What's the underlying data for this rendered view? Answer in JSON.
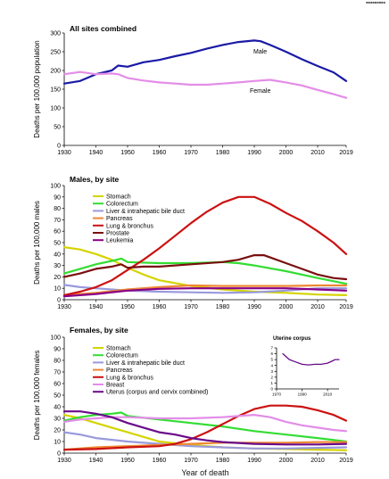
{
  "corner_text": "■■■■■■■■■",
  "xaxis_label": "Year of death",
  "chart_data": [
    {
      "type": "line",
      "title": "All sites combined",
      "ylabel": "Deaths per 100,000 population",
      "xlabel": "",
      "xlim": [
        1930,
        2019
      ],
      "ylim": [
        0,
        300
      ],
      "x_ticks": [
        1930,
        1940,
        1950,
        1960,
        1970,
        1980,
        1990,
        2000,
        2010,
        2019
      ],
      "y_ticks": [
        0,
        50,
        100,
        150,
        200,
        250,
        300
      ],
      "legend": "inline",
      "series": [
        {
          "name": "Male",
          "color": "#1a1aa6",
          "x": [
            1930,
            1935,
            1940,
            1945,
            1947,
            1950,
            1955,
            1960,
            1965,
            1970,
            1975,
            1980,
            1985,
            1990,
            1992,
            1995,
            2000,
            2005,
            2010,
            2015,
            2019
          ],
          "y": [
            165,
            172,
            190,
            200,
            213,
            210,
            222,
            228,
            238,
            247,
            258,
            268,
            276,
            280,
            278,
            268,
            250,
            230,
            212,
            195,
            172
          ]
        },
        {
          "name": "Female",
          "color": "#e38de8",
          "x": [
            1930,
            1935,
            1940,
            1945,
            1947,
            1950,
            1955,
            1960,
            1965,
            1970,
            1975,
            1980,
            1985,
            1990,
            1995,
            2000,
            2005,
            2010,
            2015,
            2019
          ],
          "y": [
            190,
            196,
            190,
            192,
            190,
            180,
            173,
            168,
            165,
            162,
            162,
            165,
            168,
            172,
            175,
            168,
            160,
            148,
            137,
            127
          ]
        }
      ]
    },
    {
      "type": "line",
      "title": "Males, by site",
      "ylabel": "Deaths per 100,000 males",
      "xlabel": "",
      "xlim": [
        1930,
        2019
      ],
      "ylim": [
        0,
        100
      ],
      "x_ticks": [
        1930,
        1940,
        1950,
        1960,
        1970,
        1980,
        1990,
        2000,
        2010,
        2019
      ],
      "y_ticks": [
        0,
        10,
        20,
        30,
        40,
        50,
        60,
        70,
        80,
        90,
        100
      ],
      "legend": "top-left",
      "series": [
        {
          "name": "Stomach",
          "color": "#d4d400",
          "x": [
            1930,
            1935,
            1940,
            1945,
            1950,
            1955,
            1960,
            1970,
            1980,
            1990,
            2000,
            2010,
            2019
          ],
          "y": [
            46,
            44,
            40,
            35,
            28,
            22,
            17,
            12,
            9,
            7,
            6,
            4.5,
            4
          ]
        },
        {
          "name": "Colorectum",
          "color": "#33dd33",
          "x": [
            1930,
            1935,
            1940,
            1945,
            1948,
            1950,
            1960,
            1970,
            1980,
            1985,
            1990,
            2000,
            2010,
            2019
          ],
          "y": [
            23,
            27,
            31,
            34,
            36,
            33,
            32,
            32,
            33,
            32,
            30,
            25,
            19,
            14
          ]
        },
        {
          "name": "Liver & intrahepatic bile duct",
          "color": "#9999dd",
          "x": [
            1930,
            1935,
            1940,
            1950,
            1960,
            1970,
            1980,
            1990,
            2000,
            2010,
            2019
          ],
          "y": [
            13,
            11,
            10,
            8,
            7,
            6.5,
            6,
            6.5,
            8,
            10,
            10
          ]
        },
        {
          "name": "Pancreas",
          "color": "#ee8833",
          "x": [
            1930,
            1940,
            1950,
            1960,
            1970,
            1980,
            1990,
            2000,
            2010,
            2019
          ],
          "y": [
            4,
            6,
            9,
            11,
            12.5,
            12,
            12,
            12,
            12.5,
            12.5
          ]
        },
        {
          "name": "Lung & bronchus",
          "color": "#cc1111",
          "x": [
            1930,
            1935,
            1940,
            1945,
            1950,
            1955,
            1960,
            1965,
            1970,
            1975,
            1980,
            1985,
            1990,
            1995,
            2000,
            2005,
            2010,
            2015,
            2019
          ],
          "y": [
            4,
            7,
            11,
            17,
            26,
            35,
            45,
            56,
            67,
            77,
            85,
            90,
            90,
            84,
            76,
            69,
            60,
            50,
            40
          ]
        },
        {
          "name": "Prostate",
          "color": "#7a0f0f",
          "x": [
            1930,
            1935,
            1940,
            1945,
            1948,
            1950,
            1955,
            1960,
            1970,
            1980,
            1985,
            1990,
            1993,
            1995,
            2000,
            2005,
            2010,
            2015,
            2019
          ],
          "y": [
            20,
            23,
            27,
            29,
            31,
            28,
            29,
            29,
            31,
            33,
            35,
            39,
            39,
            37,
            32,
            27,
            22,
            19,
            18
          ]
        },
        {
          "name": "Leukemia",
          "color": "#880088",
          "x": [
            1930,
            1940,
            1950,
            1960,
            1970,
            1980,
            1990,
            2000,
            2010,
            2019
          ],
          "y": [
            3,
            5,
            8,
            9.5,
            10,
            10,
            10,
            10,
            9,
            8
          ]
        }
      ]
    },
    {
      "type": "line",
      "title": "Females, by site",
      "ylabel": "Deaths per 100,000 females",
      "xlabel": "",
      "xlim": [
        1930,
        2019
      ],
      "ylim": [
        0,
        100
      ],
      "x_ticks": [
        1930,
        1940,
        1950,
        1960,
        1970,
        1980,
        1990,
        2000,
        2010,
        2019
      ],
      "y_ticks": [
        0,
        10,
        20,
        30,
        40,
        50,
        60,
        70,
        80,
        90,
        100
      ],
      "legend": "top-left",
      "series": [
        {
          "name": "Stomach",
          "color": "#d4d400",
          "x": [
            1930,
            1935,
            1940,
            1945,
            1950,
            1955,
            1960,
            1970,
            1980,
            1990,
            2000,
            2010,
            2019
          ],
          "y": [
            33,
            30,
            26,
            22,
            18,
            14,
            10,
            7,
            5,
            4,
            3.5,
            3,
            2.5
          ]
        },
        {
          "name": "Colorectum",
          "color": "#33dd33",
          "x": [
            1930,
            1935,
            1940,
            1945,
            1948,
            1950,
            1960,
            1970,
            1980,
            1990,
            2000,
            2010,
            2019
          ],
          "y": [
            28,
            31,
            33,
            34,
            35,
            32,
            29,
            26,
            23,
            19,
            16,
            13,
            10
          ]
        },
        {
          "name": "Liver & intrahepatic bile duct",
          "color": "#9999dd",
          "x": [
            1930,
            1935,
            1940,
            1950,
            1960,
            1970,
            1980,
            1990,
            2000,
            2010,
            2019
          ],
          "y": [
            18,
            16,
            13,
            10,
            8,
            6,
            5,
            4,
            4,
            4.5,
            5
          ]
        },
        {
          "name": "Pancreas",
          "color": "#ee8833",
          "x": [
            1930,
            1940,
            1950,
            1960,
            1970,
            1980,
            1990,
            2000,
            2010,
            2019
          ],
          "y": [
            3,
            5,
            6,
            7,
            8,
            9,
            9,
            9,
            9.5,
            9.5
          ]
        },
        {
          "name": "Lung & bronchus",
          "color": "#cc1111",
          "x": [
            1930,
            1940,
            1950,
            1960,
            1965,
            1970,
            1975,
            1980,
            1985,
            1990,
            1995,
            2000,
            2005,
            2010,
            2015,
            2019
          ],
          "y": [
            3,
            3.5,
            5,
            6,
            8,
            12,
            18,
            25,
            32,
            38,
            41,
            41,
            40,
            37,
            33,
            28
          ]
        },
        {
          "name": "Breast",
          "color": "#e38de8",
          "x": [
            1930,
            1935,
            1940,
            1945,
            1950,
            1960,
            1970,
            1980,
            1985,
            1990,
            1995,
            2000,
            2005,
            2010,
            2015,
            2019
          ],
          "y": [
            27,
            29,
            30,
            31,
            31,
            30,
            30,
            31,
            32,
            33,
            31,
            27,
            24,
            22,
            20,
            19
          ]
        },
        {
          "name": "Uterus (corpus and cervix combined)",
          "color": "#6a0a8a",
          "x": [
            1930,
            1935,
            1940,
            1945,
            1950,
            1955,
            1960,
            1965,
            1970,
            1975,
            1980,
            1990,
            2000,
            2010,
            2019
          ],
          "y": [
            36,
            36,
            34,
            31,
            26,
            22,
            18,
            16,
            13,
            11,
            9.5,
            8,
            7.5,
            7.5,
            8
          ]
        }
      ]
    },
    {
      "type": "line",
      "title": "Uterine corpus",
      "xlabel": "",
      "ylabel": "",
      "xlim": [
        1970,
        2019
      ],
      "ylim": [
        0,
        7
      ],
      "x_ticks": [
        1970,
        1990,
        2010
      ],
      "y_ticks": [
        0,
        1,
        2,
        3,
        4,
        5,
        6,
        7
      ],
      "series": [
        {
          "name": "",
          "color": "#6a0a8a",
          "x": [
            1975,
            1980,
            1985,
            1990,
            1995,
            2000,
            2005,
            2010,
            2014,
            2016,
            2019
          ],
          "y": [
            6.0,
            5.0,
            4.6,
            4.2,
            4.1,
            4.2,
            4.2,
            4.4,
            4.8,
            5.0,
            5.0
          ]
        }
      ]
    }
  ]
}
